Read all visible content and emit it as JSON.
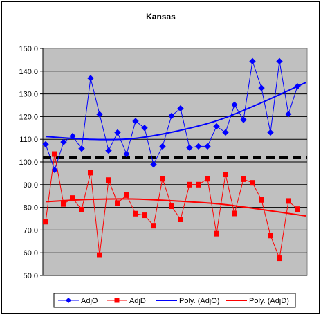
{
  "chart_data": {
    "type": "line",
    "title": "Kansas",
    "xlabel": "",
    "ylabel": "",
    "ylim": [
      50,
      150
    ],
    "y_ticks": [
      "150.0",
      "140.0",
      "130.0",
      "120.0",
      "110.0",
      "100.0",
      "90.0",
      "80.0",
      "70.0",
      "60.0",
      "50.0"
    ],
    "reference_line": {
      "value": 102,
      "style": "dashed",
      "color": "#000000"
    },
    "grid": true,
    "legend_position": "bottom",
    "plot_background": "#c0c0c0",
    "series": [
      {
        "name": "AdjO",
        "color": "#0000ff",
        "marker": "diamond",
        "values": [
          107.8,
          96.5,
          108.8,
          111.4,
          105.9,
          136.9,
          121.0,
          105.0,
          113.0,
          103.5,
          118.0,
          115.0,
          98.9,
          106.9,
          120.3,
          123.6,
          106.3,
          106.9,
          106.9,
          115.7,
          113.0,
          125.2,
          118.6,
          144.4,
          132.6,
          113.0,
          144.4,
          121.1,
          133.3
        ]
      },
      {
        "name": "AdjD",
        "color": "#ff0000",
        "marker": "square",
        "values": [
          73.7,
          103.5,
          81.5,
          84.1,
          79.0,
          95.3,
          59.0,
          92.0,
          81.9,
          85.4,
          77.2,
          76.5,
          71.9,
          92.6,
          80.5,
          74.7,
          90.0,
          90.0,
          92.6,
          68.4,
          94.5,
          77.3,
          92.4,
          90.8,
          83.3,
          67.6,
          57.6,
          82.8,
          79.2
        ]
      },
      {
        "name": "Poly. (AdjO)",
        "color": "#0000ff",
        "marker": "none",
        "trend_points": [
          [
            0,
            111.2
          ],
          [
            5,
            110.0
          ],
          [
            10,
            110.3
          ],
          [
            15,
            113.5
          ],
          [
            20,
            118.5
          ],
          [
            25,
            126.3
          ],
          [
            30,
            135.0
          ]
        ]
      },
      {
        "name": "Poly. (AdjD)",
        "color": "#ff0000",
        "marker": "none",
        "trend_points": [
          [
            0,
            82.5
          ],
          [
            5,
            83.5
          ],
          [
            10,
            83.7
          ],
          [
            15,
            82.8
          ],
          [
            20,
            81.5
          ],
          [
            25,
            79.0
          ],
          [
            30,
            76.2
          ]
        ]
      }
    ]
  }
}
